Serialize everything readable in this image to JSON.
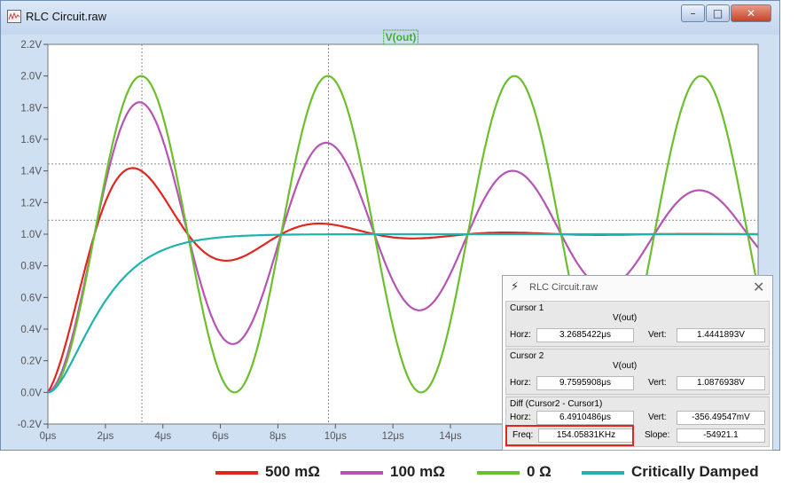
{
  "window": {
    "title": "RLC Circuit.raw",
    "buttons": {
      "minimize": "–",
      "maximize": "□",
      "close": "✕"
    }
  },
  "plot": {
    "trace_title": "V(out)",
    "background": "#ffffff",
    "grid_color": "#8a8a8a"
  },
  "chart_data": {
    "type": "line",
    "title": "V(out)",
    "xlabel": "",
    "ylabel": "",
    "xlim": [
      0,
      24.7
    ],
    "ylim": [
      -0.2,
      2.2
    ],
    "x_unit": "μs",
    "grid": true,
    "x_ticks": [
      "0μs",
      "2μs",
      "4μs",
      "6μs",
      "8μs",
      "10μs",
      "12μs",
      "14μs"
    ],
    "x_tick_values": [
      0,
      2,
      4,
      6,
      8,
      10,
      12,
      14
    ],
    "y_ticks": [
      "-0.2V",
      "0.0V",
      "0.2V",
      "0.4V",
      "0.6V",
      "0.8V",
      "1.0V",
      "1.2V",
      "1.4V",
      "1.6V",
      "1.8V",
      "2.0V",
      "2.2V"
    ],
    "y_tick_values": [
      -0.2,
      0,
      0.2,
      0.4,
      0.6,
      0.8,
      1.0,
      1.2,
      1.4,
      1.6,
      1.8,
      2.0,
      2.2
    ],
    "cursors": {
      "x": [
        3.27,
        9.76
      ],
      "y": [
        1.444,
        1.088
      ]
    },
    "series": [
      {
        "name": "500 mΩ",
        "color": "#e0261f",
        "model": "underdamped",
        "steady": 1.0,
        "period": 6.49,
        "decay": 3.55
      },
      {
        "name": "100 mΩ",
        "color": "#b554b5",
        "model": "underdamped",
        "steady": 1.0,
        "period": 6.49,
        "decay": 17.7
      },
      {
        "name": "0 Ω",
        "color": "#6cbf2c",
        "model": "underdamped",
        "steady": 1.0,
        "period": 6.49,
        "decay": 0
      },
      {
        "name": "Critically Damped",
        "color": "#1fb3ad",
        "model": "critical",
        "steady": 1.0,
        "tau": 1.03
      }
    ]
  },
  "cursor_dialog": {
    "title": "RLC Circuit.raw",
    "icon": "ltspice-logo-icon",
    "close": "✕",
    "cursor1": {
      "heading": "Cursor 1",
      "trace": "V(out)",
      "horz_label": "Horz:",
      "horz": "3.2685422μs",
      "vert_label": "Vert:",
      "vert": "1.4441893V"
    },
    "cursor2": {
      "heading": "Cursor 2",
      "trace": "V(out)",
      "horz_label": "Horz:",
      "horz": "9.7595908μs",
      "vert_label": "Vert:",
      "vert": "1.0876938V"
    },
    "diff": {
      "heading": "Diff (Cursor2 - Cursor1)",
      "horz_label": "Horz:",
      "horz": "6.4910486μs",
      "vert_label": "Vert:",
      "vert": "-356.49547mV",
      "freq_label": "Freq:",
      "freq": "154.05831KHz",
      "slope_label": "Slope:",
      "slope": "-54921.1"
    },
    "highlight_color": "#e0261f"
  },
  "legend": [
    {
      "label": "500 mΩ",
      "color": "#e0261f"
    },
    {
      "label": "100 mΩ",
      "color": "#b554b5"
    },
    {
      "label": "0 Ω",
      "color": "#6cbf2c"
    },
    {
      "label": "Critically Damped",
      "color": "#1fb3ad"
    }
  ]
}
